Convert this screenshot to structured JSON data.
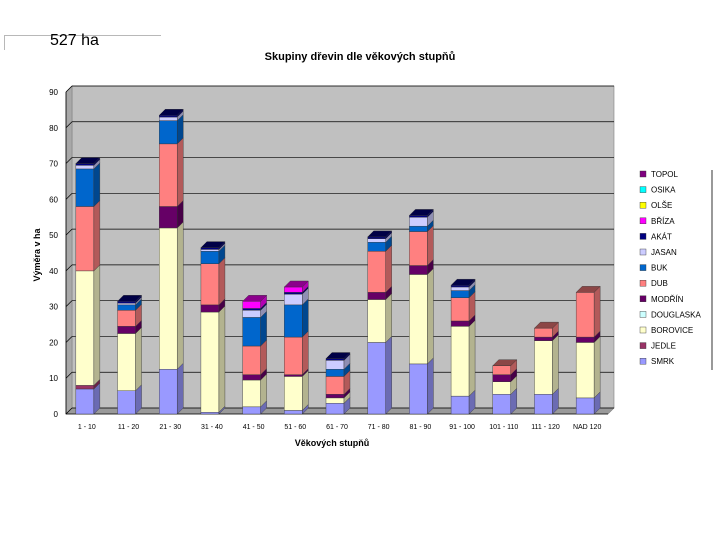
{
  "header": {
    "area_label": "527 ha"
  },
  "chart_data": {
    "type": "bar",
    "stacked": true,
    "title": "Skupiny dřevin dle věkových stupňů",
    "xlabel": "Věkových stupňů",
    "ylabel": "Výměra v ha",
    "ylim": [
      0,
      90
    ],
    "yticks": [
      0,
      10,
      20,
      30,
      40,
      50,
      60,
      70,
      80,
      90
    ],
    "grid": true,
    "legend_position": "right",
    "categories": [
      "1 - 10",
      "11 - 20",
      "21 - 30",
      "31 - 40",
      "41 - 50",
      "51 - 60",
      "61 - 70",
      "71 - 80",
      "81 - 90",
      "91 - 100",
      "101 - 110",
      "111 - 120",
      "NAD 120"
    ],
    "series": [
      {
        "name": "SMRK",
        "color": "#9999ff",
        "values": [
          7,
          6.5,
          12.5,
          0.5,
          2,
          1,
          3,
          20,
          14,
          5,
          5.5,
          5.5,
          4.5
        ]
      },
      {
        "name": "JEDLE",
        "color": "#993366",
        "values": [
          1,
          0,
          0,
          0,
          0,
          0,
          0,
          0,
          0,
          0,
          0,
          0,
          0
        ]
      },
      {
        "name": "BOROVICE",
        "color": "#ffffcc",
        "values": [
          32,
          16,
          39.5,
          28,
          7.5,
          9.5,
          1.5,
          12,
          25,
          19.5,
          3.5,
          15,
          15.5
        ]
      },
      {
        "name": "DOUGLASKA",
        "color": "#ccffff",
        "values": [
          0,
          0,
          0,
          0,
          0,
          0,
          0,
          0,
          0,
          0,
          0,
          0,
          0
        ]
      },
      {
        "name": "MODŘÍN",
        "color": "#660066",
        "values": [
          0,
          2,
          6,
          2,
          1.5,
          0.5,
          1,
          2,
          2.5,
          1.5,
          2,
          1,
          1.5
        ]
      },
      {
        "name": "DUB",
        "color": "#ff8080",
        "values": [
          18,
          4.5,
          17.5,
          11.5,
          8,
          10.5,
          5,
          11.5,
          9.5,
          6.5,
          2.5,
          2.5,
          12.5
        ]
      },
      {
        "name": "BUK",
        "color": "#0066cc",
        "values": [
          10.5,
          1.5,
          6.5,
          3.5,
          8,
          9,
          2,
          2.5,
          1.5,
          2,
          0,
          0,
          0
        ]
      },
      {
        "name": "JASAN",
        "color": "#ccccff",
        "values": [
          1,
          0.5,
          1,
          0.5,
          2,
          3,
          2.5,
          1,
          2.5,
          1,
          0,
          0,
          0
        ]
      },
      {
        "name": "AKÁT",
        "color": "#000080",
        "values": [
          0.5,
          0.5,
          0.5,
          0.5,
          0.5,
          0.5,
          0.5,
          0.5,
          0.5,
          0.5,
          0,
          0,
          0
        ]
      },
      {
        "name": "BŘÍZA",
        "color": "#ff00ff",
        "values": [
          0,
          0,
          0,
          0,
          2,
          1.5,
          0,
          0,
          0,
          0,
          0,
          0,
          0
        ]
      },
      {
        "name": "OLŠE",
        "color": "#ffff00",
        "values": [
          0,
          0,
          0,
          0,
          0,
          0,
          0,
          0,
          0,
          0,
          0,
          0,
          0
        ]
      },
      {
        "name": "OSIKA",
        "color": "#00ffff",
        "values": [
          0,
          0,
          0,
          0,
          0,
          0,
          0,
          0,
          0,
          0,
          0,
          0,
          0
        ]
      },
      {
        "name": "TOPOL",
        "color": "#800080",
        "values": [
          0,
          0,
          0,
          0,
          0,
          0,
          0,
          0,
          0,
          0,
          0,
          0,
          0
        ]
      }
    ]
  }
}
